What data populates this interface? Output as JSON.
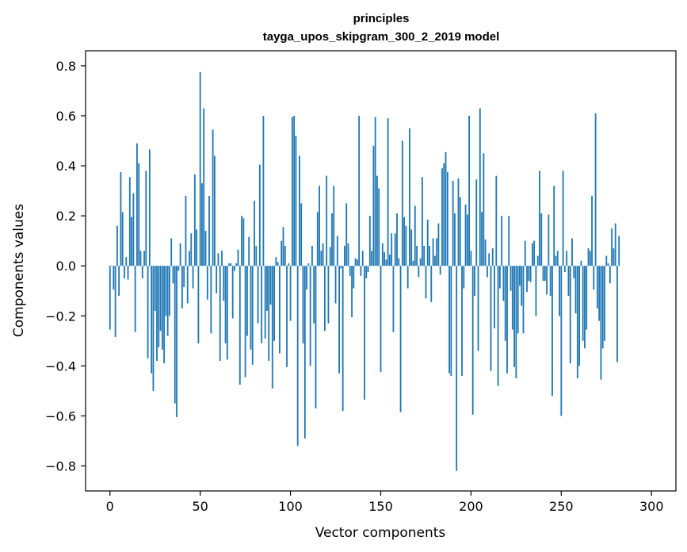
{
  "chart_data": {
    "type": "bar",
    "title": "principles",
    "subtitle": "tayga_upos_skipgram_300_2_2019 model",
    "xlabel": "Vector components",
    "ylabel": "Components values",
    "xlim": [
      -13.5,
      313.5
    ],
    "ylim": [
      -0.9,
      0.86
    ],
    "xticks": [
      0,
      50,
      100,
      150,
      200,
      250,
      300
    ],
    "yticks": [
      -0.8,
      -0.6,
      -0.4,
      -0.2,
      0.0,
      0.2,
      0.4,
      0.6,
      0.8
    ],
    "ytick_labels": [
      "−0.8",
      "−0.6",
      "−0.4",
      "−0.2",
      "0.0",
      "0.2",
      "0.4",
      "0.6",
      "0.8"
    ],
    "bar_color": "#1f77b4",
    "values": [
      -0.255,
      0.002,
      -0.095,
      -0.285,
      0.16,
      -0.12,
      0.375,
      0.215,
      -0.05,
      0.035,
      -0.055,
      0.355,
      0.195,
      0.29,
      -0.265,
      0.49,
      0.41,
      0.06,
      -0.05,
      0.06,
      0.38,
      -0.37,
      0.465,
      -0.43,
      -0.5,
      -0.18,
      -0.38,
      -0.325,
      -0.26,
      -0.335,
      -0.39,
      -0.2,
      -0.28,
      -0.2,
      0.11,
      -0.07,
      -0.55,
      -0.605,
      -0.02,
      0.09,
      -0.17,
      -0.085,
      0.28,
      -0.15,
      0.06,
      0.13,
      -0.09,
      0.365,
      0.145,
      -0.31,
      0.775,
      0.33,
      0.63,
      0.14,
      -0.135,
      0.28,
      -0.27,
      0.545,
      0.44,
      -0.11,
      0.05,
      -0.38,
      0.06,
      -0.14,
      -0.31,
      -0.375,
      0.01,
      0.01,
      -0.21,
      -0.02,
      0.01,
      0.065,
      -0.475,
      0.2,
      0.19,
      -0.445,
      -0.28,
      0.115,
      -0.335,
      -0.395,
      0.26,
      0.08,
      -0.23,
      0.405,
      -0.31,
      0.6,
      -0.29,
      -0.18,
      -0.38,
      -0.155,
      -0.49,
      -0.3,
      0.035,
      0.015,
      -0.35,
      0.1,
      0.155,
      0.08,
      -0.405,
      0.01,
      -0.22,
      0.595,
      0.6,
      0.52,
      -0.72,
      0.44,
      0.25,
      -0.31,
      -0.69,
      -0.095,
      0.01,
      -0.4,
      0.08,
      -0.23,
      -0.57,
      0.215,
      0.32,
      0.06,
      0.09,
      -0.26,
      0.36,
      -0.23,
      0.075,
      0.21,
      0.32,
      -0.15,
      0.12,
      -0.43,
      -0.01,
      -0.58,
      0.08,
      0.25,
      0.09,
      -0.04,
      -0.205,
      -0.09,
      0.03,
      0.025,
      0.6,
      -0.04,
      0.06,
      -0.535,
      -0.05,
      -0.025,
      0.2,
      0.06,
      0.48,
      0.595,
      0.36,
      0.31,
      -0.425,
      0.09,
      0.055,
      0.025,
      0.59,
      0.045,
      0.13,
      -0.265,
      0.13,
      0.21,
      0.03,
      -0.585,
      0.5,
      0.195,
      0.16,
      -0.09,
      0.55,
      0.145,
      0.02,
      0.24,
      0.08,
      -0.045,
      0.03,
      0.355,
      0.08,
      -0.13,
      0.185,
      0.08,
      -0.145,
      0.11,
      0.04,
      0.11,
      0.17,
      -0.035,
      0.39,
      0.41,
      0.455,
      0.375,
      -0.43,
      -0.44,
      0.34,
      0.21,
      -0.82,
      0.35,
      0.275,
      -0.44,
      -0.09,
      0.245,
      0.205,
      0.6,
      0.06,
      -0.595,
      -0.12,
      0.345,
      -0.34,
      0.63,
      0.215,
      0.45,
      0.105,
      -0.045,
      0.05,
      -0.42,
      0.07,
      -0.25,
      0.36,
      -0.48,
      -0.09,
      0.2,
      -0.14,
      -0.3,
      -0.43,
      0.2,
      -0.1,
      -0.255,
      -0.405,
      -0.45,
      -0.27,
      -0.08,
      -0.16,
      -0.27,
      0.1,
      -0.105,
      -0.06,
      -0.065,
      0.09,
      0.1,
      -0.2,
      0.04,
      0.38,
      0.21,
      -0.06,
      -0.06,
      -0.115,
      0.205,
      -0.12,
      -0.52,
      0.32,
      0.04,
      0.06,
      -0.2,
      -0.6,
      0.38,
      -0.025,
      0.06,
      -0.12,
      -0.39,
      0.11,
      -0.05,
      -0.19,
      -0.45,
      -0.4,
      0.02,
      -0.3,
      -0.33,
      -0.255,
      0.07,
      0.06,
      0.28,
      -0.095,
      0.61,
      -0.17,
      -0.22,
      -0.455,
      -0.33,
      -0.3,
      0.04,
      0.01,
      -0.07,
      0.15,
      0.07,
      0.17,
      -0.385,
      0.12
    ]
  }
}
